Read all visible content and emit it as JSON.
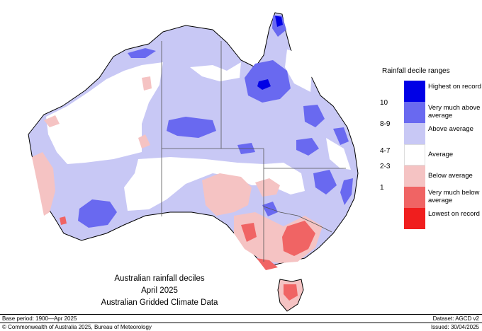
{
  "map": {
    "legend": {
      "title": "Rainfall decile ranges",
      "items": [
        {
          "label": "Highest on record",
          "color": "#0000e6"
        },
        {
          "label": "Very much above average",
          "color": "#6969f0"
        },
        {
          "label": "Above average",
          "color": "#c8c8f5"
        },
        {
          "label": "Average",
          "color": "#ffffff"
        },
        {
          "label": "Below average",
          "color": "#f5c3c3"
        },
        {
          "label": "Very much below average",
          "color": "#f06464"
        },
        {
          "label": "Lowest on record",
          "color": "#f01e1e"
        }
      ],
      "decile_labels": [
        "10",
        "8-9",
        "4-7",
        "2-3",
        "1"
      ]
    },
    "caption": {
      "line1": "Australian rainfall deciles",
      "line2": "April 2025",
      "line3": "Australian Gridded Climate Data"
    },
    "footer": {
      "base_period": "Base period: 1900—Apr 2025",
      "dataset": "Dataset: AGCD v2",
      "copyright": "© Commonwealth of Australia 2025, Bureau of Meteorology",
      "issued": "Issued: 30/04/2025"
    }
  }
}
